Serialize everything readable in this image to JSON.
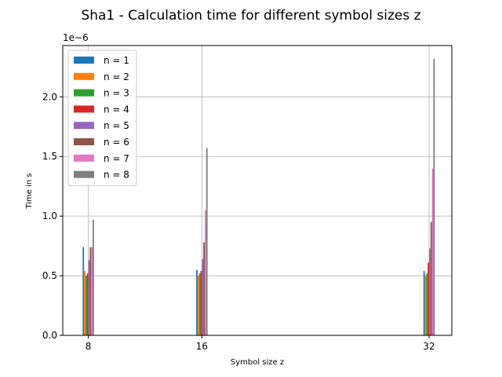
{
  "chart_data": {
    "type": "bar",
    "title": "Sha1 - Calculation time for different symbol sizes z",
    "xlabel": "Symbol size z",
    "ylabel": "Time in s",
    "y_offset_label": "1e−6",
    "x": [
      8,
      16,
      32
    ],
    "x_tick_labels": [
      "8",
      "16",
      "32"
    ],
    "xlim": [
      6.2,
      33.6
    ],
    "ylim": [
      0,
      2.43
    ],
    "y_ticks": [
      0.0,
      0.5,
      1.0,
      1.5,
      2.0
    ],
    "y_tick_labels": [
      "0.0",
      "0.5",
      "1.0",
      "1.5",
      "2.0"
    ],
    "grid": true,
    "legend_position": "top-left",
    "series": [
      {
        "name": "n = 1",
        "color": "#1f77b4",
        "values": [
          0.74,
          0.55,
          0.54
        ]
      },
      {
        "name": "n = 2",
        "color": "#ff7f0e",
        "values": [
          0.54,
          0.5,
          0.5
        ]
      },
      {
        "name": "n = 3",
        "color": "#2ca02c",
        "values": [
          0.5,
          0.52,
          0.52
        ]
      },
      {
        "name": "n = 4",
        "color": "#d62728",
        "values": [
          0.52,
          0.54,
          0.61
        ]
      },
      {
        "name": "n = 5",
        "color": "#9467bd",
        "values": [
          0.63,
          0.64,
          0.73
        ]
      },
      {
        "name": "n = 6",
        "color": "#8c564b",
        "values": [
          0.74,
          0.78,
          0.95
        ]
      },
      {
        "name": "n = 7",
        "color": "#e377c2",
        "values": [
          0.74,
          1.05,
          1.4
        ]
      },
      {
        "name": "n = 8",
        "color": "#7f7f7f",
        "values": [
          0.97,
          1.57,
          2.32
        ]
      }
    ]
  }
}
